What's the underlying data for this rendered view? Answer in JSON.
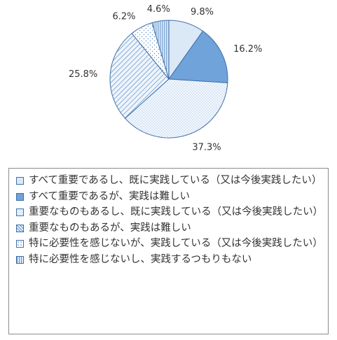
{
  "chart_data": {
    "type": "pie",
    "slices": [
      {
        "label": "すべて重要であるし、既に実践している（又は今後実践したい）",
        "value": 9.8,
        "display": "9.8%",
        "color": "#dbe8f6",
        "pattern": "solid-light"
      },
      {
        "label": "すべて重要であるが、実践は難しい",
        "value": 16.2,
        "display": "16.2%",
        "color": "#6fa3da",
        "pattern": "solid-dark"
      },
      {
        "label": "重要なものもあるし、既に実践している（又は今後実践したい）",
        "value": 37.3,
        "display": "37.3%",
        "color": "#f4f8fd",
        "pattern": "dots"
      },
      {
        "label": "重要なものもあるが、実践は難しい",
        "value": 25.8,
        "display": "25.8%",
        "color": "#e8f0fa",
        "pattern": "diagonal"
      },
      {
        "label": "特に必要性を感じないが、実践している（又は今後実践したい）",
        "value": 6.2,
        "display": "6.2%",
        "color": "#ffffff",
        "pattern": "sparse-dots"
      },
      {
        "label": "特に必要性を感じないし、実践するつもりもない",
        "value": 4.6,
        "display": "4.6%",
        "color": "#e1ecf8",
        "pattern": "vertical"
      }
    ],
    "legend_position": "bottom"
  }
}
